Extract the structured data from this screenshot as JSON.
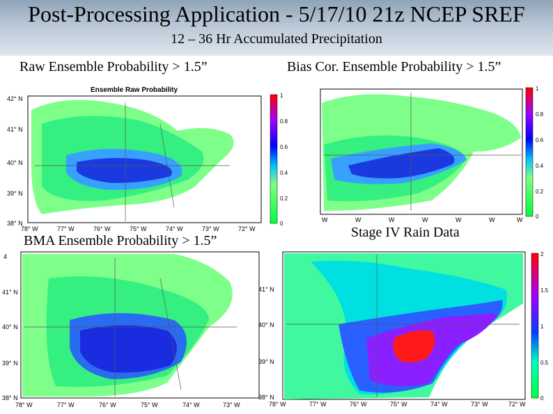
{
  "header": {
    "title": "Post-Processing Application - 5/17/10 21z NCEP SREF",
    "subtitle": "12 – 36 Hr Accumulated Precipitation"
  },
  "panels": [
    {
      "label": "Raw Ensemble Probability > 1.5”",
      "map_title": "Ensemble Raw Probability",
      "lat_labels": [
        "42° N",
        "41° N",
        "40° N",
        "39° N",
        "38° N"
      ],
      "lon_labels": [
        "78° W",
        "77° W",
        "76° W",
        "75° W",
        "74° W",
        "73° W",
        "72° W"
      ],
      "colorbar_ticks": [
        "1",
        "0.8",
        "0.6",
        "0.4",
        "0.2",
        "0"
      ]
    },
    {
      "label": "Bias Cor. Ensemble Probability > 1.5”",
      "map_title": "",
      "lat_labels": [],
      "lon_labels": [
        "W",
        "W",
        "W",
        "W",
        "W",
        "W",
        "W"
      ],
      "colorbar_ticks": [
        "1",
        "0.8",
        "0.6",
        "0.4",
        "0.2",
        "0"
      ]
    },
    {
      "label": "BMA Ensemble Probability > 1.5”",
      "map_title": "",
      "lat_labels": [
        "4",
        "41° N",
        "40° N",
        "39° N",
        "38° N"
      ],
      "lon_labels": [
        "78° W",
        "77° W",
        "76° W",
        "75° W",
        "74° W",
        "73° W"
      ],
      "colorbar_ticks": []
    },
    {
      "label": "Stage IV Rain Data",
      "map_title": "",
      "lat_labels": [
        "41° N",
        "40° N",
        "39° N",
        "38° N"
      ],
      "lon_labels": [
        "78° W",
        "77° W",
        "76° W",
        "75° W",
        "74° W",
        "73° W",
        "72° W"
      ],
      "colorbar_ticks": [
        "2",
        "1.5",
        "1",
        "0.5",
        "0"
      ]
    }
  ]
}
